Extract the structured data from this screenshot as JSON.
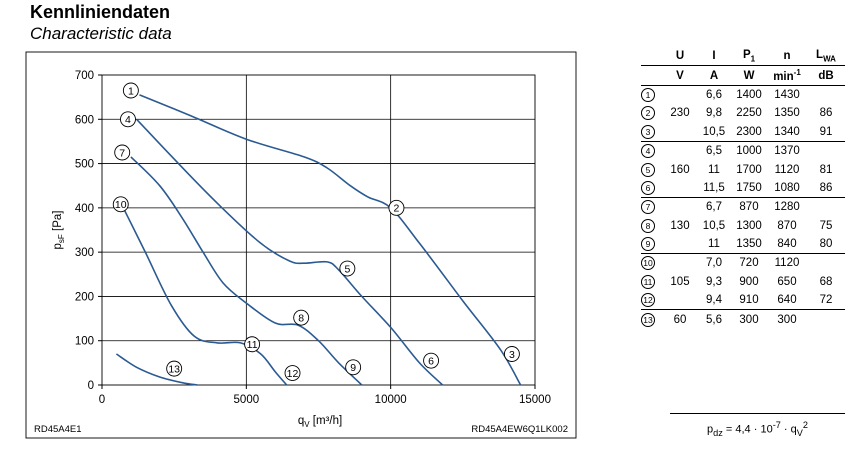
{
  "heading": {
    "title_de": "Kennliniendaten",
    "title_en": "Characteristic data"
  },
  "footer": {
    "left": "RD45A4E1",
    "right": "RD45A4EW6Q1LK002"
  },
  "formula": "p_dz = 4,4 · 10^-7 · q_V^2",
  "chart_data": {
    "type": "line",
    "xlabel": "qV [m³/h]",
    "ylabel": "psF [Pa]",
    "xlim": [
      0,
      15000
    ],
    "ylim": [
      0,
      700
    ],
    "xticks": [
      0,
      5000,
      10000,
      15000
    ],
    "yticks": [
      0,
      100,
      200,
      300,
      400,
      500,
      600,
      700
    ],
    "grid": true,
    "series": [
      {
        "name": "1-2-3",
        "x": [
          1300,
          3000,
          5000,
          7000,
          7800,
          8600,
          9200,
          10000,
          11000,
          12500,
          13800,
          14500
        ],
        "y": [
          655,
          610,
          555,
          515,
          490,
          450,
          425,
          400,
          320,
          190,
          80,
          0
        ]
      },
      {
        "name": "4-5-6",
        "x": [
          1200,
          2500,
          4000,
          5500,
          6500,
          7000,
          7800,
          8200,
          9000,
          10000,
          11000,
          11800
        ],
        "y": [
          600,
          510,
          410,
          320,
          280,
          275,
          278,
          260,
          200,
          130,
          50,
          0
        ]
      },
      {
        "name": "7-8-9",
        "x": [
          1000,
          2000,
          2800,
          3500,
          4200,
          5000,
          6000,
          6800,
          7500,
          8200,
          9000
        ],
        "y": [
          515,
          450,
          375,
          300,
          230,
          185,
          140,
          135,
          100,
          50,
          0
        ]
      },
      {
        "name": "10-11-12",
        "x": [
          700,
          1500,
          2400,
          3200,
          4000,
          4800,
          5500,
          6000,
          6400
        ],
        "y": [
          405,
          300,
          180,
          110,
          95,
          95,
          70,
          30,
          0
        ]
      },
      {
        "name": "13",
        "x": [
          500,
          1200,
          2000,
          2800,
          3300
        ],
        "y": [
          70,
          40,
          18,
          5,
          0
        ]
      }
    ],
    "markers": [
      {
        "label": "1",
        "x": 1000,
        "y": 665
      },
      {
        "label": "2",
        "x": 10200,
        "y": 400
      },
      {
        "label": "3",
        "x": 14200,
        "y": 70
      },
      {
        "label": "4",
        "x": 900,
        "y": 600
      },
      {
        "label": "5",
        "x": 8500,
        "y": 263
      },
      {
        "label": "6",
        "x": 11400,
        "y": 55
      },
      {
        "label": "7",
        "x": 700,
        "y": 525
      },
      {
        "label": "8",
        "x": 6900,
        "y": 152
      },
      {
        "label": "9",
        "x": 8700,
        "y": 40
      },
      {
        "label": "10",
        "x": 650,
        "y": 408
      },
      {
        "label": "11",
        "x": 5200,
        "y": 92
      },
      {
        "label": "12",
        "x": 6600,
        "y": 27
      },
      {
        "label": "13",
        "x": 2500,
        "y": 37
      }
    ]
  },
  "table": {
    "headers": [
      "U",
      "I",
      "P1",
      "n",
      "LWA"
    ],
    "units": [
      "V",
      "A",
      "W",
      "min-1",
      "dB"
    ],
    "rows": [
      {
        "id": "1",
        "U": "",
        "I": "6,6",
        "P": "1400",
        "n": "1430",
        "L": ""
      },
      {
        "id": "2",
        "U": "230",
        "I": "9,8",
        "P": "2250",
        "n": "1350",
        "L": "86"
      },
      {
        "id": "3",
        "U": "",
        "I": "10,5",
        "P": "2300",
        "n": "1340",
        "L": "91"
      },
      {
        "id": "4",
        "U": "",
        "I": "6,5",
        "P": "1000",
        "n": "1370",
        "L": ""
      },
      {
        "id": "5",
        "U": "160",
        "I": "11",
        "P": "1700",
        "n": "1120",
        "L": "81"
      },
      {
        "id": "6",
        "U": "",
        "I": "11,5",
        "P": "1750",
        "n": "1080",
        "L": "86"
      },
      {
        "id": "7",
        "U": "",
        "I": "6,7",
        "P": "870",
        "n": "1280",
        "L": ""
      },
      {
        "id": "8",
        "U": "130",
        "I": "10,5",
        "P": "1300",
        "n": "870",
        "L": "75"
      },
      {
        "id": "9",
        "U": "",
        "I": "11",
        "P": "1350",
        "n": "840",
        "L": "80"
      },
      {
        "id": "10",
        "U": "",
        "I": "7,0",
        "P": "720",
        "n": "1120",
        "L": ""
      },
      {
        "id": "11",
        "U": "105",
        "I": "9,3",
        "P": "900",
        "n": "650",
        "L": "68"
      },
      {
        "id": "12",
        "U": "",
        "I": "9,4",
        "P": "910",
        "n": "640",
        "L": "72"
      },
      {
        "id": "13",
        "U": "60",
        "I": "5,6",
        "P": "300",
        "n": "300",
        "L": ""
      }
    ]
  }
}
